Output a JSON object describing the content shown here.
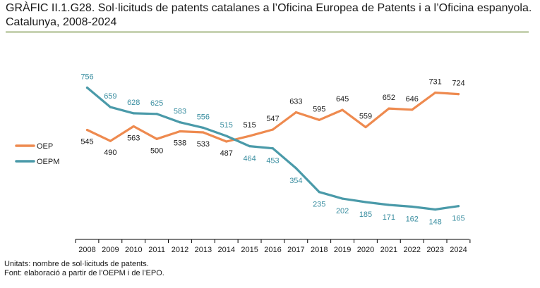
{
  "title": "GRÀFIC II.1.G28. Sol·licituds de patents catalanes a l’Oficina Europea de Patents i a l’Oficina espanyola. Catalunya, 2008-2024",
  "footnotes": {
    "units": "Unitats: nombre de sol·licituds de patents.",
    "source": "Font: elaboració a partir de l’OEPM i de l’EPO."
  },
  "colors": {
    "OEP": "#ee8a4f",
    "OEPM": "#4a9aa9",
    "oepm_label": "#3a8ea0",
    "axis": "#000000"
  },
  "chart_data": {
    "type": "line",
    "title": "Sol·licituds de patents catalanes a l’Oficina Europea de Patents i a l’Oficina espanyola. Catalunya, 2008-2024",
    "xlabel": "",
    "ylabel": "",
    "ylim": [
      100,
      800
    ],
    "grid": false,
    "legend_position": "left",
    "categories": [
      "2008",
      "2009",
      "2010",
      "2011",
      "2012",
      "2013",
      "2014",
      "2015",
      "2016",
      "2017",
      "2018",
      "2019",
      "2020",
      "2021",
      "2022",
      "2023",
      "2024"
    ],
    "series": [
      {
        "name": "OEP",
        "values": [
          545,
          490,
          563,
          500,
          538,
          533,
          487,
          515,
          547,
          633,
          595,
          645,
          559,
          652,
          646,
          731,
          724
        ]
      },
      {
        "name": "OEPM",
        "values": [
          756,
          659,
          628,
          625,
          583,
          556,
          515,
          464,
          453,
          354,
          235,
          202,
          185,
          171,
          162,
          148,
          165
        ]
      }
    ]
  }
}
